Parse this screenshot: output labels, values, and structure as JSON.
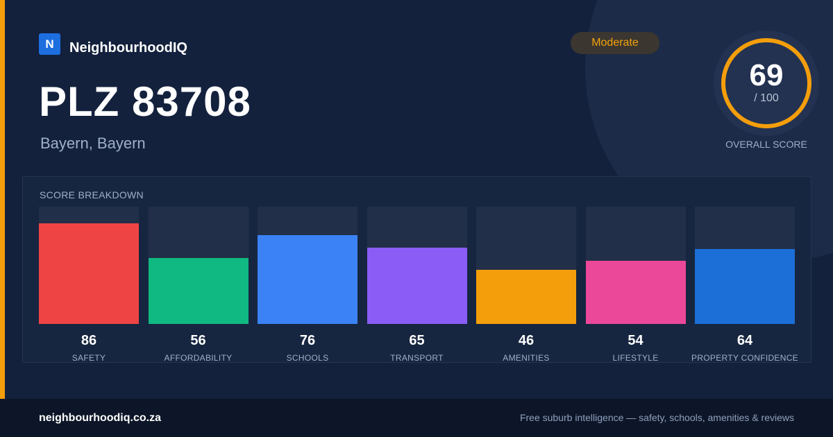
{
  "brand": {
    "mark": "N",
    "name": "NeighbourhoodIQ"
  },
  "badge": {
    "label": "Moderate"
  },
  "hero": {
    "title": "PLZ 83708",
    "subtitle": "Bayern, Bayern"
  },
  "overall": {
    "value": "69",
    "max": "/ 100",
    "label": "OVERALL SCORE",
    "fraction": 0.69,
    "color": "#f59e0b"
  },
  "breakdown": {
    "label": "SCORE BREAKDOWN"
  },
  "chart_data": {
    "type": "bar",
    "categories": [
      "SAFETY",
      "AFFORDABILITY",
      "SCHOOLS",
      "TRANSPORT",
      "AMENITIES",
      "LIFESTYLE",
      "PROPERTY CONFIDENCE"
    ],
    "values": [
      86,
      56,
      76,
      65,
      46,
      54,
      64
    ],
    "colors": [
      "#ef4444",
      "#10b981",
      "#3b82f6",
      "#8b5cf6",
      "#f59e0b",
      "#ec4899",
      "#1d6fd8"
    ],
    "ylim": [
      0,
      100
    ],
    "title": "SCORE BREAKDOWN"
  },
  "footer": {
    "url": "neighbourhoodiq.co.za",
    "tagline": "Free suburb intelligence — safety, schools, amenities & reviews"
  }
}
